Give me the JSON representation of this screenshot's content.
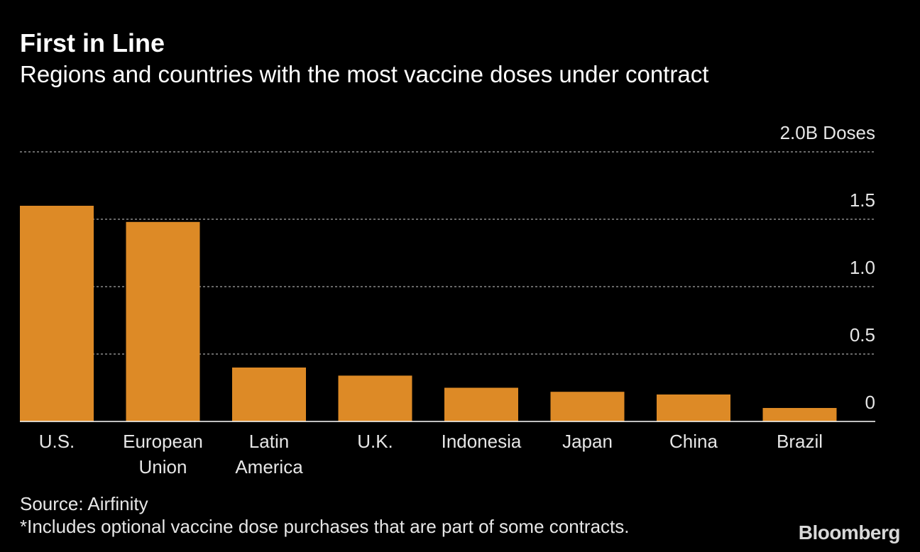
{
  "title": "First in Line",
  "subtitle": "Regions and countries with the most vaccine doses under contract",
  "source": "Source: Airfinity",
  "footnote": "*Includes optional vaccine dose purchases that are part of some contracts.",
  "brand": "Bloomberg",
  "colors": {
    "background": "#000000",
    "bar": "#dd8a26",
    "grid": "#8a8a8a",
    "text": "#ffffff"
  },
  "chart_data": {
    "type": "bar",
    "title": "First in Line",
    "subtitle": "Regions and countries with the most vaccine doses under contract",
    "categories": [
      "U.S.",
      "European Union",
      "Latin America",
      "U.K.",
      "Indonesia",
      "Japan",
      "China",
      "Brazil"
    ],
    "category_lines": [
      [
        "U.S."
      ],
      [
        "European",
        "Union"
      ],
      [
        "Latin",
        "America"
      ],
      [
        "U.K."
      ],
      [
        "Indonesia"
      ],
      [
        "Japan"
      ],
      [
        "China"
      ],
      [
        "Brazil"
      ]
    ],
    "values": [
      1.6,
      1.48,
      0.4,
      0.34,
      0.25,
      0.22,
      0.2,
      0.1
    ],
    "unit": "B Doses",
    "ylim": [
      0,
      2.0
    ],
    "yticks": [
      0,
      0.5,
      1.0,
      1.5,
      2.0
    ],
    "ytick_labels": [
      "0",
      "0.5",
      "1.0",
      "1.5",
      "2.0B Doses"
    ],
    "axis_side": "right",
    "grid": true,
    "legend": "none"
  }
}
